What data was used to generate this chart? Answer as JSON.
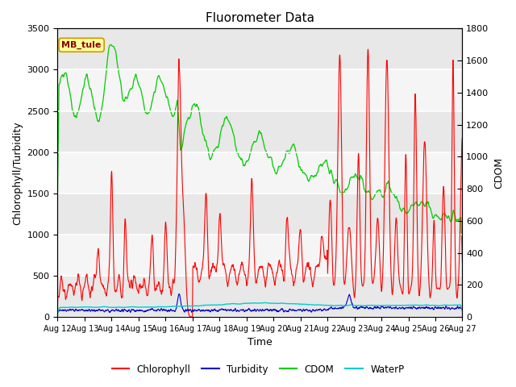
{
  "title": "Fluorometer Data",
  "xlabel": "Time",
  "ylabel_left": "Chlorophyll/Turbidity",
  "ylabel_right": "CDOM",
  "annotation": "MB_tule",
  "ylim_left": [
    0,
    3500
  ],
  "ylim_right": [
    0,
    1800
  ],
  "yticks_left": [
    0,
    500,
    1000,
    1500,
    2000,
    2500,
    3000,
    3500
  ],
  "yticks_right": [
    0,
    200,
    400,
    600,
    800,
    1000,
    1200,
    1400,
    1600,
    1800
  ],
  "xtick_labels": [
    "Aug 12",
    "Aug 13",
    "Aug 14",
    "Aug 15",
    "Aug 16",
    "Aug 17",
    "Aug 18",
    "Aug 19",
    "Aug 20",
    "Aug 21",
    "Aug 22",
    "Aug 23",
    "Aug 24",
    "Aug 25",
    "Aug 26",
    "Aug 27"
  ],
  "colors": {
    "chlorophyll": "#ff0000",
    "turbidity": "#0000cc",
    "cdom": "#00cc00",
    "waterp": "#00cccc",
    "background_dark": "#e8e8e8",
    "background_light": "#f5f5f5",
    "annotation_bg": "#ffff99",
    "annotation_border": "#cc9900",
    "annotation_text": "#880000"
  },
  "legend_labels": [
    "Chlorophyll",
    "Turbidity",
    "CDOM",
    "WaterP"
  ]
}
